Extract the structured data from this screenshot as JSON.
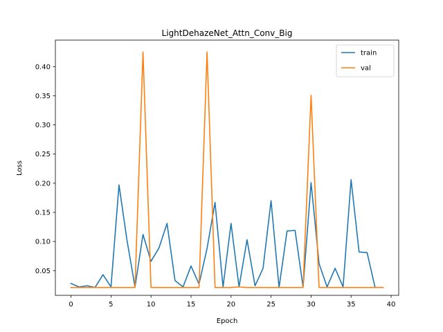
{
  "chart_data": {
    "type": "line",
    "title": "LightDehazeNet_Attn_Conv_Big",
    "xlabel": "Epoch",
    "ylabel": "Loss",
    "xlim": [
      -1.95,
      40.95
    ],
    "ylim": [
      0.0076,
      0.4455
    ],
    "xticks": [
      0,
      5,
      10,
      15,
      20,
      25,
      30,
      35,
      40
    ],
    "xtick_labels": [
      "0",
      "5",
      "10",
      "15",
      "20",
      "25",
      "30",
      "35",
      "40"
    ],
    "yticks": [
      0.05,
      0.1,
      0.15,
      0.2,
      0.25,
      0.3,
      0.35,
      0.4
    ],
    "ytick_labels": [
      "0.05",
      "0.10",
      "0.15",
      "0.20",
      "0.25",
      "0.30",
      "0.35",
      "0.40"
    ],
    "grid": false,
    "legend_position": "top-right",
    "x": [
      0,
      1,
      2,
      3,
      4,
      5,
      6,
      7,
      8,
      9,
      10,
      11,
      12,
      13,
      14,
      15,
      16,
      17,
      18,
      19,
      20,
      21,
      22,
      23,
      24,
      25,
      26,
      27,
      28,
      29,
      30,
      31,
      32,
      33,
      34,
      35,
      36,
      37,
      38,
      39
    ],
    "series": [
      {
        "name": "train",
        "color": "#1f77b4",
        "values": [
          0.028,
          0.022,
          0.024,
          0.021,
          0.043,
          0.022,
          0.197,
          0.102,
          0.022,
          0.112,
          0.066,
          0.089,
          0.131,
          0.033,
          0.022,
          0.058,
          0.027,
          0.088,
          0.167,
          0.022,
          0.131,
          0.022,
          0.103,
          0.024,
          0.054,
          0.17,
          0.021,
          0.118,
          0.119,
          0.022,
          0.201,
          0.062,
          0.022,
          0.054,
          0.022,
          0.206,
          0.082,
          0.081,
          0.021,
          0.021
        ]
      },
      {
        "name": "val",
        "color": "#ff7f0e",
        "values": [
          0.021,
          0.021,
          0.021,
          0.021,
          0.021,
          0.021,
          0.021,
          0.021,
          0.021,
          0.425,
          0.021,
          0.021,
          0.021,
          0.021,
          0.021,
          0.021,
          0.021,
          0.425,
          0.021,
          0.021,
          0.021,
          0.022,
          0.021,
          0.021,
          0.021,
          0.021,
          0.021,
          0.021,
          0.021,
          0.021,
          0.351,
          0.021,
          0.021,
          0.021,
          0.021,
          0.021,
          0.021,
          0.021,
          0.021,
          0.021
        ]
      }
    ]
  }
}
